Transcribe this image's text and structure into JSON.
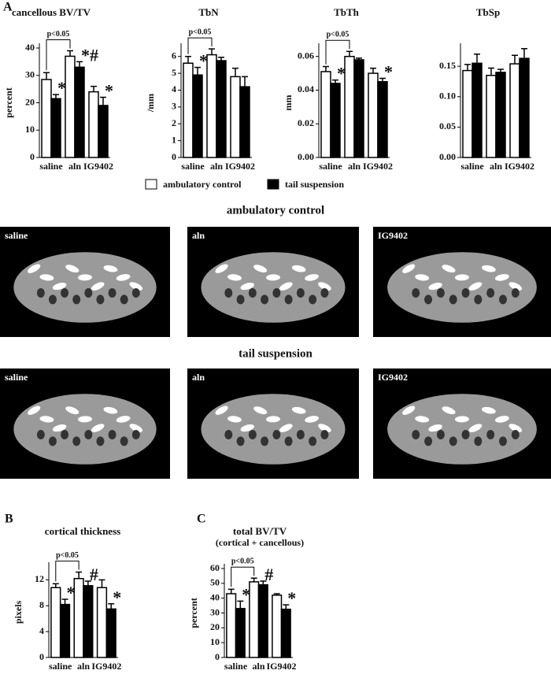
{
  "panels": [
    "A",
    "B",
    "C"
  ],
  "legend": [
    {
      "name": "ambulatory control",
      "color": "#ffffff"
    },
    {
      "name": "tail suspension",
      "color": "#000000"
    }
  ],
  "image_rows": [
    {
      "heading": "ambulatory control",
      "panels": [
        "saline",
        "aln",
        "IG9402"
      ]
    },
    {
      "heading": "tail suspension",
      "panels": [
        "saline",
        "aln",
        "IG9402"
      ]
    }
  ],
  "chart_data": [
    {
      "type": "bar",
      "title": "cancellous BV/TV",
      "ylabel": "percent",
      "categories": [
        "saline",
        "aln",
        "IG9402"
      ],
      "series": [
        {
          "values": [
            28.5,
            37,
            24
          ],
          "errors": [
            2.5,
            2,
            2
          ]
        },
        {
          "values": [
            21.5,
            33,
            19
          ],
          "errors": [
            1.5,
            2,
            3
          ],
          "markers": [
            "*",
            "*#",
            "*"
          ]
        }
      ],
      "ylim": [
        0,
        40
      ],
      "yticks": [
        0,
        10,
        20,
        30,
        40
      ],
      "bracket": "p<0.05"
    },
    {
      "type": "bar",
      "title": "TbN",
      "ylabel": "/mm",
      "categories": [
        "saline",
        "aln",
        "IG9402"
      ],
      "series": [
        {
          "values": [
            5.6,
            6.1,
            4.8
          ],
          "errors": [
            0.4,
            0.35,
            0.5
          ]
        },
        {
          "values": [
            4.9,
            5.75,
            4.2
          ],
          "errors": [
            0.45,
            0.2,
            0.6
          ],
          "markers": [
            "*",
            null,
            null
          ]
        }
      ],
      "ylim": [
        0,
        6.5
      ],
      "yticks": [
        0,
        1,
        2,
        3,
        4,
        5,
        6
      ],
      "bracket": "p<0.05"
    },
    {
      "type": "bar",
      "title": "TbTh",
      "ylabel": "mm",
      "categories": [
        "saline",
        "aln",
        "IG9402"
      ],
      "series": [
        {
          "values": [
            0.051,
            0.06,
            0.05
          ],
          "errors": [
            0.003,
            0.003,
            0.003
          ]
        },
        {
          "values": [
            0.044,
            0.058,
            0.045
          ],
          "errors": [
            0.002,
            0.001,
            0.002
          ],
          "markers": [
            "*",
            null,
            "*"
          ]
        }
      ],
      "ylim": [
        0,
        0.065
      ],
      "yticks": [
        {
          "value": 0,
          "label": "0.00"
        },
        {
          "value": 0.02,
          "label": "0.02"
        },
        {
          "value": 0.04,
          "label": "0.04"
        },
        {
          "value": 0.06,
          "label": "0.06"
        }
      ],
      "bracket": "p<0.05"
    },
    {
      "type": "bar",
      "title": "TbSp",
      "categories": [
        "saline",
        "aln",
        "IG9402"
      ],
      "series": [
        {
          "values": [
            0.143,
            0.135,
            0.154
          ],
          "errors": [
            0.01,
            0.012,
            0.014
          ]
        },
        {
          "values": [
            0.155,
            0.14,
            0.163
          ],
          "errors": [
            0.015,
            0.005,
            0.016
          ]
        }
      ],
      "ylim": [
        0,
        0.18
      ],
      "yticks": [
        {
          "value": 0,
          "label": "0.00"
        },
        {
          "value": 0.05,
          "label": "0.05"
        },
        {
          "value": 0.1,
          "label": "0.10"
        },
        {
          "value": 0.15,
          "label": "0.15"
        }
      ]
    },
    {
      "type": "bar",
      "title": "cortical  thickness",
      "ylabel": "pixels",
      "categories": [
        "saline",
        "aln",
        "IG9402"
      ],
      "series": [
        {
          "values": [
            10.8,
            12.2,
            10.8
          ],
          "errors": [
            0.6,
            1,
            1.2
          ]
        },
        {
          "values": [
            8.2,
            11.1,
            7.5
          ],
          "errors": [
            0.8,
            0.7,
            0.8
          ],
          "markers": [
            "*",
            "#",
            "*"
          ]
        }
      ],
      "ylim": [
        0,
        14
      ],
      "yticks": [
        0,
        4,
        8,
        12
      ],
      "bracket": "p<0.05"
    },
    {
      "type": "bar",
      "title": "total BV/TV",
      "subtitle": "(cortical + cancellous)",
      "ylabel": "percent",
      "categories": [
        "saline",
        "aln",
        "IG9402"
      ],
      "series": [
        {
          "values": [
            43,
            51,
            42
          ],
          "errors": [
            3,
            2.5,
            1
          ]
        },
        {
          "values": [
            33,
            49,
            32.5
          ],
          "errors": [
            5,
            2.5,
            3
          ],
          "markers": [
            "*",
            "#",
            "*"
          ]
        }
      ],
      "ylim": [
        0,
        60
      ],
      "yticks": [
        0,
        10,
        20,
        30,
        40,
        50,
        60
      ],
      "bracket": "p<0.05"
    }
  ]
}
